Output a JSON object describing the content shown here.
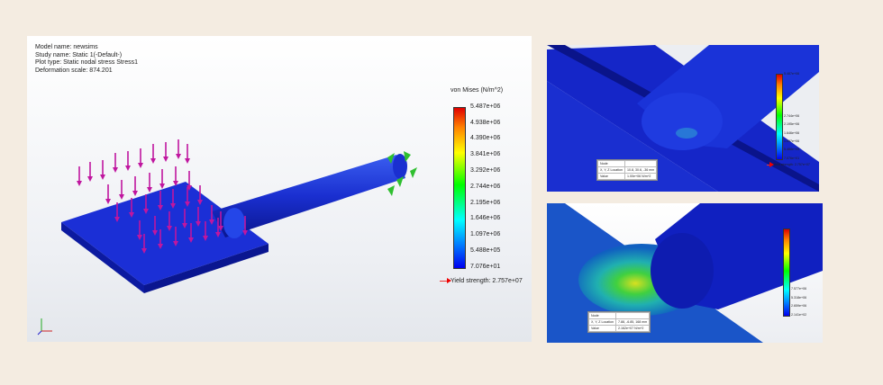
{
  "main": {
    "info": {
      "model_name": "Model name: newsims",
      "study_name": "Study name: Static 1(-Default-)",
      "plot_type": "Plot type: Static nodal stress Stress1",
      "deformation_scale": "Deformation scale: 874.201"
    },
    "legend": {
      "title": "von Mises (N/m^2)",
      "ticks": [
        "5.487e+06",
        "4.938e+06",
        "4.390e+06",
        "3.841e+06",
        "3.292e+06",
        "2.744e+06",
        "2.195e+06",
        "1.646e+06",
        "1.097e+06",
        "5.488e+05",
        "7.076e+01"
      ],
      "yield": "Yield strength: 2.757e+07"
    },
    "axis_labels": {
      "y": "y",
      "x": "x",
      "z": "z"
    }
  },
  "detail1": {
    "legend": {
      "title": "von Mises (N/m^2)",
      "ticks": [
        "5.487e+06",
        "",
        "",
        "",
        "",
        "2.744e+06",
        "2.195e+06",
        "1.646e+06",
        "1.097e+06",
        "5.488e+05",
        "7.076e+01"
      ],
      "yield": "Yield strength: 2.757e+07"
    },
    "probe": {
      "rows": [
        [
          "Node",
          ""
        ],
        [
          "X, Y, Z Location",
          "10.8, 30.6, -36 mm"
        ],
        [
          "Value",
          "1.00e+06 N/m^2"
        ]
      ]
    }
  },
  "detail2": {
    "legend": {
      "title": "von Mises (N/m^2)",
      "ticks": [
        "",
        "",
        "",
        "",
        "",
        "",
        "",
        "7.577e+06",
        "5.318e+06",
        "2.659e+06",
        "2.141e+02"
      ]
    },
    "probe": {
      "rows": [
        [
          "Node",
          ""
        ],
        [
          "X, Y, Z Location",
          "7.88, -6.85, 168 mm"
        ],
        [
          "Value",
          "2.162e+07 N/m^2"
        ]
      ]
    }
  },
  "colors": {
    "background": "#f4ece1",
    "mesh_blue": "#1a2fd0",
    "load_arrow": "#c0169f",
    "fixture": "#2fbf2f",
    "yield_arrow": "#e00000"
  }
}
